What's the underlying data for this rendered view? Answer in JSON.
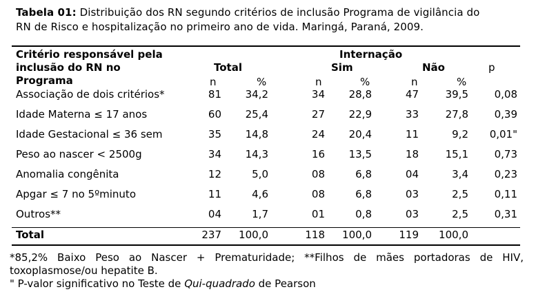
{
  "caption": {
    "label": "Tabela 01:",
    "text_line1": " Distribuição dos RN segundo critérios de inclusão Programa de vigilância do",
    "text_line2": "RN de Risco e hospitalização no primeiro ano de vida. Maringá, Paraná, 2009."
  },
  "header": {
    "criterion_line1": "Critério responsável pela",
    "criterion_line2": "inclusão do RN no",
    "criterion_line3": "Programa",
    "total": "Total",
    "internacao": "Internação",
    "sim": "Sim",
    "nao": "Não",
    "p": "p",
    "n": "n",
    "pct": "%"
  },
  "rows": [
    {
      "label": "Associação de dois critérios*",
      "total_n": "81",
      "total_pct": "34,2",
      "sim_n": "34",
      "sim_pct": "28,8",
      "nao_n": "47",
      "nao_pct": "39,5",
      "p": "0,08"
    },
    {
      "label": "Idade Materna ≤ 17 anos",
      "total_n": "60",
      "total_pct": "25,4",
      "sim_n": "27",
      "sim_pct": "22,9",
      "nao_n": "33",
      "nao_pct": "27,8",
      "p": "0,39"
    },
    {
      "label": "Idade Gestacional ≤ 36 sem",
      "total_n": "35",
      "total_pct": "14,8",
      "sim_n": "24",
      "sim_pct": "20,4",
      "nao_n": "11",
      "nao_pct": "9,2",
      "p": "0,01\""
    },
    {
      "label": "Peso ao nascer < 2500g",
      "total_n": "34",
      "total_pct": "14,3",
      "sim_n": "16",
      "sim_pct": "13,5",
      "nao_n": "18",
      "nao_pct": "15,1",
      "p": "0,73"
    },
    {
      "label": "Anomalia congênita",
      "total_n": "12",
      "total_pct": "5,0",
      "sim_n": "08",
      "sim_pct": "6,8",
      "nao_n": "04",
      "nao_pct": "3,4",
      "p": "0,23"
    },
    {
      "label": "Apgar ≤ 7 no 5ºminuto",
      "total_n": "11",
      "total_pct": "4,6",
      "sim_n": "08",
      "sim_pct": "6,8",
      "nao_n": "03",
      "nao_pct": "2,5",
      "p": "0,11"
    },
    {
      "label": "Outros**",
      "total_n": "04",
      "total_pct": "1,7",
      "sim_n": "01",
      "sim_pct": "0,8",
      "nao_n": "03",
      "nao_pct": "2,5",
      "p": "0,31"
    }
  ],
  "total_row": {
    "label": "Total",
    "total_n": "237",
    "total_pct": "100,0",
    "sim_n": "118",
    "sim_pct": "100,0",
    "nao_n": "119",
    "nao_pct": "100,0"
  },
  "footnotes": {
    "line1": "*85,2% Baixo Peso ao Nascer + Prematuridade; **Filhos de mães portadoras de HIV,",
    "line2": "toxoplasmose/ou hepatite B.",
    "line3_pre": "\" P-valor significativo no Teste de ",
    "line3_italic": "Qui-quadrado",
    "line3_post": " de Pearson"
  }
}
